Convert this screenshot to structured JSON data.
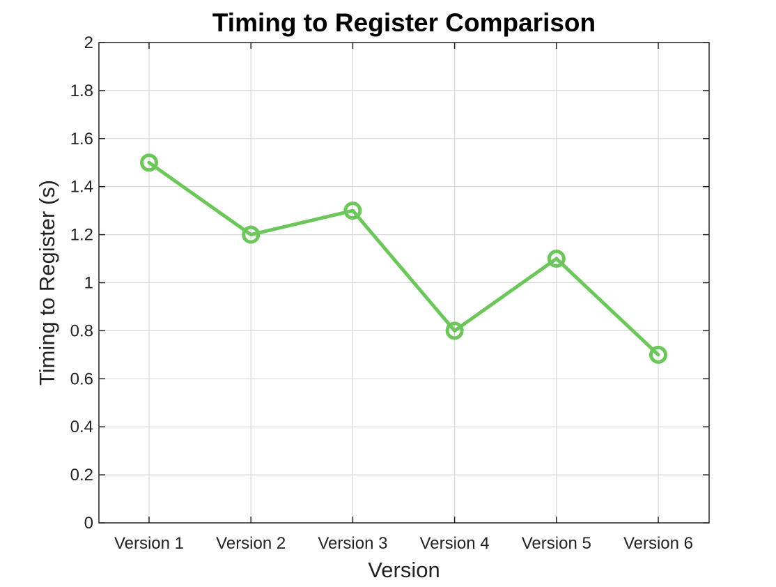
{
  "chart_data": {
    "type": "line",
    "title": "Timing to Register Comparison",
    "xlabel": "Version",
    "ylabel": "Timing to Register (s)",
    "categories": [
      "Version 1",
      "Version 2",
      "Version 3",
      "Version 4",
      "Version 5",
      "Version 6"
    ],
    "series": [
      {
        "values": [
          1.5,
          1.2,
          1.3,
          0.8,
          1.1,
          0.7
        ],
        "color": "#6cc75a",
        "marker": "circle"
      }
    ],
    "ylim": [
      0,
      2
    ],
    "yticks": [
      0,
      0.2,
      0.4,
      0.6,
      0.8,
      1,
      1.2,
      1.4,
      1.6,
      1.8,
      2
    ],
    "ytick_labels": [
      "0",
      "0.2",
      "0.4",
      "0.6",
      "0.8",
      "1",
      "1.2",
      "1.4",
      "1.6",
      "1.8",
      "2"
    ],
    "grid": true,
    "legend": "none"
  }
}
